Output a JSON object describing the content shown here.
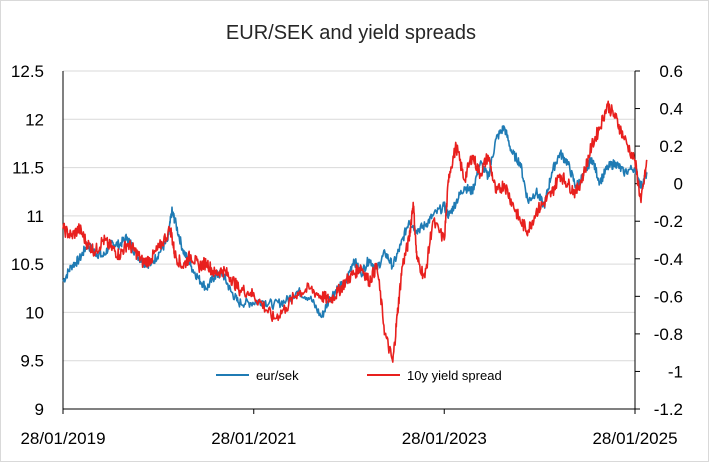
{
  "chart_data": {
    "type": "line",
    "title": "EUR/SEK and yield spreads",
    "x_tick_labels": [
      "28/01/2019",
      "28/01/2021",
      "28/01/2023",
      "28/01/2025"
    ],
    "x_tick_dates": [
      "2019-01-28",
      "2021-01-28",
      "2023-01-28",
      "2025-01-28"
    ],
    "xlim": [
      "2019-01-28",
      "2025-01-28"
    ],
    "y_left": {
      "min": 9,
      "max": 12.5,
      "step": 0.5,
      "tick_labels": [
        "9",
        "9.5",
        "10",
        "10.5",
        "11",
        "11.5",
        "12",
        "12.5"
      ]
    },
    "y_right": {
      "min": -1.2,
      "max": 0.6,
      "step": 0.2,
      "tick_labels": [
        "-1.2",
        "-1",
        "-0.8",
        "-0.6",
        "-0.4",
        "-0.2",
        "0",
        "0.2",
        "0.4",
        "0.6"
      ]
    },
    "grid": "horizontal",
    "legend": "bottom-center",
    "series": [
      {
        "name": "eur/sek",
        "axis": "left",
        "color": "#1f7bb4",
        "points": [
          [
            "2019-01-28",
            10.32
          ],
          [
            "2019-03-01",
            10.48
          ],
          [
            "2019-04-01",
            10.55
          ],
          [
            "2019-05-01",
            10.7
          ],
          [
            "2019-06-01",
            10.62
          ],
          [
            "2019-07-01",
            10.58
          ],
          [
            "2019-08-01",
            10.72
          ],
          [
            "2019-09-01",
            10.7
          ],
          [
            "2019-10-01",
            10.78
          ],
          [
            "2019-11-01",
            10.62
          ],
          [
            "2019-12-01",
            10.52
          ],
          [
            "2020-01-01",
            10.5
          ],
          [
            "2020-02-01",
            10.62
          ],
          [
            "2020-03-05",
            10.75
          ],
          [
            "2020-03-20",
            11.05
          ],
          [
            "2020-04-01",
            10.95
          ],
          [
            "2020-05-01",
            10.65
          ],
          [
            "2020-06-01",
            10.48
          ],
          [
            "2020-07-01",
            10.35
          ],
          [
            "2020-08-01",
            10.25
          ],
          [
            "2020-09-01",
            10.38
          ],
          [
            "2020-10-01",
            10.4
          ],
          [
            "2020-11-01",
            10.22
          ],
          [
            "2020-12-01",
            10.1
          ],
          [
            "2021-01-15",
            10.1
          ],
          [
            "2021-03-01",
            10.12
          ],
          [
            "2021-04-15",
            10.08
          ],
          [
            "2021-06-01",
            10.12
          ],
          [
            "2021-07-15",
            10.22
          ],
          [
            "2021-09-01",
            10.15
          ],
          [
            "2021-10-15",
            9.95
          ],
          [
            "2021-11-15",
            10.15
          ],
          [
            "2021-12-15",
            10.25
          ],
          [
            "2022-01-15",
            10.3
          ],
          [
            "2022-02-15",
            10.55
          ],
          [
            "2022-03-15",
            10.4
          ],
          [
            "2022-04-15",
            10.55
          ],
          [
            "2022-05-15",
            10.45
          ],
          [
            "2022-06-15",
            10.62
          ],
          [
            "2022-07-15",
            10.48
          ],
          [
            "2022-08-15",
            10.7
          ],
          [
            "2022-09-15",
            10.95
          ],
          [
            "2022-10-15",
            10.85
          ],
          [
            "2022-11-15",
            10.9
          ],
          [
            "2022-12-15",
            11.0
          ],
          [
            "2023-01-28",
            11.1
          ],
          [
            "2023-02-15",
            11.0
          ],
          [
            "2023-03-15",
            11.15
          ],
          [
            "2023-04-15",
            11.3
          ],
          [
            "2023-05-15",
            11.25
          ],
          [
            "2023-06-15",
            11.55
          ],
          [
            "2023-07-15",
            11.4
          ],
          [
            "2023-08-15",
            11.8
          ],
          [
            "2023-09-15",
            11.92
          ],
          [
            "2023-10-15",
            11.65
          ],
          [
            "2023-11-15",
            11.55
          ],
          [
            "2023-12-15",
            11.15
          ],
          [
            "2024-01-15",
            11.25
          ],
          [
            "2024-02-15",
            11.1
          ],
          [
            "2024-03-15",
            11.45
          ],
          [
            "2024-04-15",
            11.65
          ],
          [
            "2024-05-15",
            11.55
          ],
          [
            "2024-06-15",
            11.3
          ],
          [
            "2024-07-15",
            11.42
          ],
          [
            "2024-08-15",
            11.6
          ],
          [
            "2024-09-15",
            11.35
          ],
          [
            "2024-10-15",
            11.5
          ],
          [
            "2024-11-15",
            11.55
          ],
          [
            "2024-12-15",
            11.45
          ],
          [
            "2025-01-28",
            11.5
          ],
          [
            "2025-02-20",
            11.3
          ],
          [
            "2025-03-15",
            11.45
          ]
        ]
      },
      {
        "name": "10y yield spread",
        "axis": "right",
        "color": "#e8201e",
        "points": [
          [
            "2019-01-28",
            -0.24
          ],
          [
            "2019-03-01",
            -0.28
          ],
          [
            "2019-04-01",
            -0.24
          ],
          [
            "2019-05-01",
            -0.32
          ],
          [
            "2019-06-01",
            -0.36
          ],
          [
            "2019-07-01",
            -0.3
          ],
          [
            "2019-08-01",
            -0.34
          ],
          [
            "2019-09-01",
            -0.38
          ],
          [
            "2019-10-01",
            -0.32
          ],
          [
            "2019-11-01",
            -0.36
          ],
          [
            "2019-12-01",
            -0.42
          ],
          [
            "2020-01-01",
            -0.4
          ],
          [
            "2020-02-01",
            -0.34
          ],
          [
            "2020-03-15",
            -0.24
          ],
          [
            "2020-04-01",
            -0.38
          ],
          [
            "2020-05-01",
            -0.44
          ],
          [
            "2020-06-01",
            -0.38
          ],
          [
            "2020-07-01",
            -0.44
          ],
          [
            "2020-08-01",
            -0.42
          ],
          [
            "2020-09-01",
            -0.48
          ],
          [
            "2020-10-01",
            -0.46
          ],
          [
            "2020-11-01",
            -0.5
          ],
          [
            "2020-12-01",
            -0.56
          ],
          [
            "2021-01-15",
            -0.58
          ],
          [
            "2021-03-01",
            -0.64
          ],
          [
            "2021-04-15",
            -0.72
          ],
          [
            "2021-06-01",
            -0.66
          ],
          [
            "2021-07-15",
            -0.58
          ],
          [
            "2021-09-01",
            -0.56
          ],
          [
            "2021-10-15",
            -0.6
          ],
          [
            "2021-11-15",
            -0.62
          ],
          [
            "2021-12-15",
            -0.58
          ],
          [
            "2022-01-15",
            -0.52
          ],
          [
            "2022-02-15",
            -0.48
          ],
          [
            "2022-03-15",
            -0.44
          ],
          [
            "2022-04-15",
            -0.52
          ],
          [
            "2022-05-15",
            -0.44
          ],
          [
            "2022-06-15",
            -0.8
          ],
          [
            "2022-07-15",
            -0.95
          ],
          [
            "2022-08-01",
            -0.7
          ],
          [
            "2022-08-20",
            -0.44
          ],
          [
            "2022-09-15",
            -0.3
          ],
          [
            "2022-10-01",
            -0.1
          ],
          [
            "2022-10-15",
            -0.4
          ],
          [
            "2022-11-15",
            -0.5
          ],
          [
            "2022-12-15",
            -0.2
          ],
          [
            "2023-01-28",
            -0.3
          ],
          [
            "2023-02-15",
            0.05
          ],
          [
            "2023-03-15",
            0.2
          ],
          [
            "2023-04-15",
            0.02
          ],
          [
            "2023-05-15",
            0.15
          ],
          [
            "2023-06-15",
            0.05
          ],
          [
            "2023-07-15",
            0.15
          ],
          [
            "2023-08-15",
            -0.05
          ],
          [
            "2023-09-15",
            0.0
          ],
          [
            "2023-10-15",
            -0.1
          ],
          [
            "2023-11-15",
            -0.2
          ],
          [
            "2023-12-15",
            -0.25
          ],
          [
            "2024-01-15",
            -0.15
          ],
          [
            "2024-02-15",
            -0.1
          ],
          [
            "2024-03-15",
            -0.05
          ],
          [
            "2024-04-15",
            0.05
          ],
          [
            "2024-05-15",
            0.0
          ],
          [
            "2024-06-15",
            -0.05
          ],
          [
            "2024-07-15",
            0.05
          ],
          [
            "2024-08-15",
            0.2
          ],
          [
            "2024-09-15",
            0.3
          ],
          [
            "2024-10-15",
            0.42
          ],
          [
            "2024-11-15",
            0.35
          ],
          [
            "2024-12-15",
            0.25
          ],
          [
            "2025-01-28",
            0.12
          ],
          [
            "2025-02-20",
            -0.1
          ],
          [
            "2025-03-15",
            0.12
          ]
        ]
      }
    ]
  }
}
